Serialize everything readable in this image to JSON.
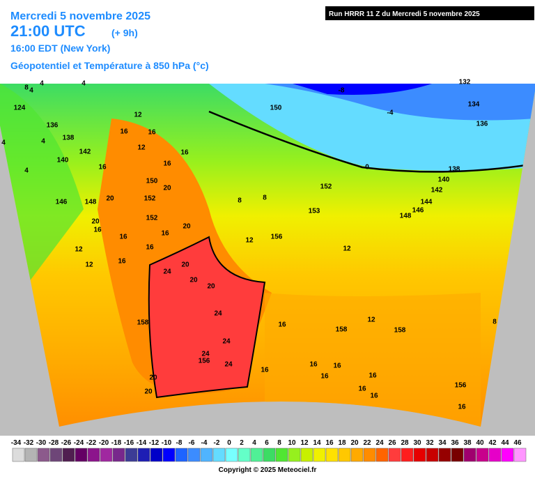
{
  "header": {
    "date": "Mercredi 5 novembre 2025",
    "utc": "21:00 UTC",
    "lead": "(+ 9h)",
    "local": "16:00 EDT (New York)",
    "field": "Géopotentiel et Température à 850 hPa (°c)",
    "run": "Run HRRR 11 Z du Mercredi 5 novembre 2025"
  },
  "map_labels": [
    4,
    4,
    4,
    8,
    124,
    136,
    138,
    4,
    4,
    140,
    142,
    146,
    4,
    12,
    16,
    16,
    16,
    12,
    16,
    16,
    148,
    150,
    152,
    20,
    20,
    16,
    12,
    16,
    20,
    12,
    16,
    16,
    152,
    20,
    20,
    24,
    20,
    20,
    24,
    24,
    156,
    24,
    24,
    20,
    20,
    16,
    158,
    16,
    16,
    158,
    16,
    16,
    16,
    16,
    16,
    150,
    -8,
    -4,
    132,
    134,
    136,
    0,
    138,
    140,
    142,
    144,
    146,
    148,
    152,
    153,
    156,
    12,
    12,
    8,
    8,
    12,
    158,
    8,
    16,
    156,
    16
  ],
  "legend": {
    "labels": [
      -34,
      -32,
      -30,
      -28,
      -26,
      -24,
      -22,
      -20,
      -18,
      -16,
      -14,
      -12,
      -10,
      -8,
      -6,
      -4,
      -2,
      0,
      2,
      4,
      6,
      8,
      10,
      12,
      14,
      16,
      18,
      20,
      22,
      24,
      26,
      28,
      30,
      32,
      34,
      36,
      38,
      40,
      42,
      44,
      46
    ],
    "colors": [
      "#dcdcdc",
      "#b4b4b4",
      "#8c5a8c",
      "#6e4678",
      "#501e50",
      "#640064",
      "#8c148c",
      "#a028a0",
      "#78288c",
      "#3c3c96",
      "#1e1eb4",
      "#0000c8",
      "#0000ff",
      "#1e64ff",
      "#3c8cff",
      "#50b4ff",
      "#64dcff",
      "#78ffff",
      "#64ffc8",
      "#50f096",
      "#3cdc64",
      "#50e632",
      "#96f01e",
      "#c8f000",
      "#f0f000",
      "#ffe100",
      "#ffc800",
      "#ffaa00",
      "#ff8c00",
      "#ff6400",
      "#ff3c3c",
      "#ff1e1e",
      "#e60000",
      "#c80000",
      "#960000",
      "#780000",
      "#a0006e",
      "#c8008c",
      "#e600c8",
      "#ff00ff",
      "#ff96ff"
    ]
  },
  "copyright": "Copyright © 2025 Meteociel.fr"
}
